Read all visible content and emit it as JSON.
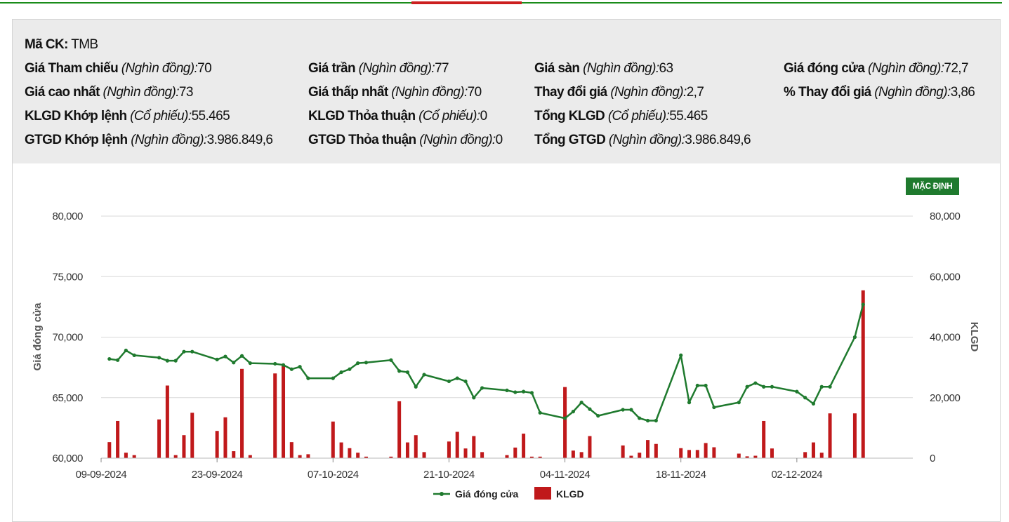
{
  "stock": {
    "code_label": "Mã CK:",
    "code": "TMB",
    "rows": [
      [
        {
          "label": "Giá Tham chiếu",
          "unit": "(Nghìn đồng):",
          "value": "70"
        },
        {
          "label": "Giá trần",
          "unit": "(Nghìn đồng):",
          "value": "77"
        },
        {
          "label": "Giá sàn",
          "unit": "(Nghìn đồng):",
          "value": "63"
        },
        {
          "label": "Giá đóng cửa",
          "unit": "(Nghìn đồng):",
          "value": "72,7"
        }
      ],
      [
        {
          "label": "Giá cao nhất",
          "unit": "(Nghìn đồng):",
          "value": "73"
        },
        {
          "label": "Giá thấp nhất",
          "unit": "(Nghìn đồng):",
          "value": "70"
        },
        {
          "label": "Thay đổi giá",
          "unit": "(Nghìn đồng):",
          "value": "2,7"
        },
        {
          "label": "% Thay đổi giá",
          "unit": "(Nghìn đồng):",
          "value": "3,86"
        }
      ],
      [
        {
          "label": "KLGD Khớp lệnh",
          "unit": "(Cổ phiếu):",
          "value": "55.465"
        },
        {
          "label": "KLGD Thỏa thuận",
          "unit": "(Cổ phiếu):",
          "value": "0"
        },
        {
          "label": "Tổng KLGD",
          "unit": "(Cổ phiếu):",
          "value": "55.465"
        }
      ],
      [
        {
          "label": "GTGD Khớp lệnh",
          "unit": "(Nghìn đồng):",
          "value": "3.986.849,6"
        },
        {
          "label": "GTGD Thỏa thuận",
          "unit": "(Nghìn đồng):",
          "value": "0"
        },
        {
          "label": "Tổng GTGD",
          "unit": "(Nghìn đồng):",
          "value": "3.986.849,6"
        }
      ]
    ]
  },
  "reset_button_label": "MẶC ĐỊNH",
  "colors": {
    "line": "#1f7a2e",
    "bar": "#c0191b",
    "grid": "#d8d8d8",
    "accent_green": "#1a8c1a",
    "accent_red": "#cc1f1f"
  },
  "chart_data": {
    "type": "bar+line",
    "title": "",
    "xlabel": "",
    "ylabel": "Giá đóng cửa",
    "y2label": "KLGD",
    "ylim": [
      60000,
      80000
    ],
    "y2lim": [
      0,
      80000
    ],
    "yticks": [
      "60,000",
      "65,000",
      "70,000",
      "75,000",
      "80,000"
    ],
    "y2ticks": [
      "0",
      "20,000",
      "40,000",
      "60,000",
      "80,000"
    ],
    "xlim": [
      "2024-09-09",
      "2024-12-16"
    ],
    "xticks": [
      "09-09-2024",
      "23-09-2024",
      "07-10-2024",
      "21-10-2024",
      "04-11-2024",
      "18-11-2024",
      "02-12-2024"
    ],
    "legend": {
      "placement": "bottom-center",
      "entries": [
        "Giá đóng cửa",
        "KLGD"
      ]
    },
    "grid": "horizontal",
    "series": [
      {
        "name": "Giá đóng cửa",
        "type": "line",
        "points": [
          [
            "2024-09-10",
            68200
          ],
          [
            "2024-09-11",
            68100
          ],
          [
            "2024-09-12",
            68900
          ],
          [
            "2024-09-13",
            68500
          ],
          [
            "2024-09-16",
            68300
          ],
          [
            "2024-09-17",
            68050
          ],
          [
            "2024-09-18",
            68050
          ],
          [
            "2024-09-19",
            68800
          ],
          [
            "2024-09-20",
            68800
          ],
          [
            "2024-09-23",
            68150
          ],
          [
            "2024-09-24",
            68400
          ],
          [
            "2024-09-25",
            67900
          ],
          [
            "2024-09-26",
            68450
          ],
          [
            "2024-09-27",
            67850
          ],
          [
            "2024-09-30",
            67800
          ],
          [
            "2024-10-01",
            67700
          ],
          [
            "2024-10-02",
            67350
          ],
          [
            "2024-10-03",
            67550
          ],
          [
            "2024-10-04",
            66600
          ],
          [
            "2024-10-07",
            66600
          ],
          [
            "2024-10-08",
            67100
          ],
          [
            "2024-10-09",
            67350
          ],
          [
            "2024-10-10",
            67850
          ],
          [
            "2024-10-11",
            67900
          ],
          [
            "2024-10-14",
            68100
          ],
          [
            "2024-10-15",
            67200
          ],
          [
            "2024-10-16",
            67100
          ],
          [
            "2024-10-17",
            65900
          ],
          [
            "2024-10-18",
            66900
          ],
          [
            "2024-10-21",
            66350
          ],
          [
            "2024-10-22",
            66600
          ],
          [
            "2024-10-23",
            66350
          ],
          [
            "2024-10-24",
            65000
          ],
          [
            "2024-10-25",
            65800
          ],
          [
            "2024-10-28",
            65600
          ],
          [
            "2024-10-29",
            65450
          ],
          [
            "2024-10-30",
            65500
          ],
          [
            "2024-10-31",
            65400
          ],
          [
            "2024-11-01",
            63750
          ],
          [
            "2024-11-04",
            63300
          ],
          [
            "2024-11-05",
            63850
          ],
          [
            "2024-11-06",
            64600
          ],
          [
            "2024-11-07",
            64050
          ],
          [
            "2024-11-08",
            63500
          ],
          [
            "2024-11-11",
            64000
          ],
          [
            "2024-11-12",
            64000
          ],
          [
            "2024-11-13",
            63300
          ],
          [
            "2024-11-14",
            63100
          ],
          [
            "2024-11-15",
            63100
          ],
          [
            "2024-11-18",
            68500
          ],
          [
            "2024-11-19",
            64600
          ],
          [
            "2024-11-20",
            66000
          ],
          [
            "2024-11-21",
            66000
          ],
          [
            "2024-11-22",
            64200
          ],
          [
            "2024-11-25",
            64600
          ],
          [
            "2024-11-26",
            65900
          ],
          [
            "2024-11-27",
            66200
          ],
          [
            "2024-11-28",
            65900
          ],
          [
            "2024-11-29",
            65900
          ],
          [
            "2024-12-02",
            65500
          ],
          [
            "2024-12-03",
            65000
          ],
          [
            "2024-12-04",
            64500
          ],
          [
            "2024-12-05",
            65900
          ],
          [
            "2024-12-06",
            65900
          ],
          [
            "2024-12-09",
            70000
          ],
          [
            "2024-12-10",
            72700
          ]
        ]
      },
      {
        "name": "KLGD",
        "type": "bar",
        "axis": "right",
        "points": [
          [
            "2024-09-10",
            5300
          ],
          [
            "2024-09-11",
            12300
          ],
          [
            "2024-09-12",
            1800
          ],
          [
            "2024-09-13",
            1000
          ],
          [
            "2024-09-16",
            12800
          ],
          [
            "2024-09-17",
            24000
          ],
          [
            "2024-09-18",
            1000
          ],
          [
            "2024-09-19",
            7600
          ],
          [
            "2024-09-20",
            15000
          ],
          [
            "2024-09-23",
            9000
          ],
          [
            "2024-09-24",
            13500
          ],
          [
            "2024-09-25",
            2300
          ],
          [
            "2024-09-26",
            29500
          ],
          [
            "2024-09-27",
            1000
          ],
          [
            "2024-09-30",
            28000
          ],
          [
            "2024-10-01",
            30500
          ],
          [
            "2024-10-02",
            5300
          ],
          [
            "2024-10-03",
            1000
          ],
          [
            "2024-10-04",
            1300
          ],
          [
            "2024-10-07",
            12100
          ],
          [
            "2024-10-08",
            5200
          ],
          [
            "2024-10-09",
            3300
          ],
          [
            "2024-10-10",
            1800
          ],
          [
            "2024-10-11",
            500
          ],
          [
            "2024-10-14",
            500
          ],
          [
            "2024-10-15",
            18800
          ],
          [
            "2024-10-16",
            5200
          ],
          [
            "2024-10-17",
            7600
          ],
          [
            "2024-10-18",
            2000
          ],
          [
            "2024-10-21",
            5500
          ],
          [
            "2024-10-22",
            8700
          ],
          [
            "2024-10-23",
            3200
          ],
          [
            "2024-10-24",
            7300
          ],
          [
            "2024-10-25",
            2000
          ],
          [
            "2024-10-28",
            1000
          ],
          [
            "2024-10-29",
            3500
          ],
          [
            "2024-10-30",
            8100
          ],
          [
            "2024-10-31",
            500
          ],
          [
            "2024-11-01",
            500
          ],
          [
            "2024-11-04",
            23500
          ],
          [
            "2024-11-05",
            2500
          ],
          [
            "2024-11-06",
            2000
          ],
          [
            "2024-11-07",
            7300
          ],
          [
            "2024-11-11",
            4200
          ],
          [
            "2024-11-12",
            800
          ],
          [
            "2024-11-13",
            1800
          ],
          [
            "2024-11-14",
            6000
          ],
          [
            "2024-11-15",
            4700
          ],
          [
            "2024-11-18",
            3300
          ],
          [
            "2024-11-19",
            2700
          ],
          [
            "2024-11-20",
            2700
          ],
          [
            "2024-11-21",
            5000
          ],
          [
            "2024-11-22",
            3600
          ],
          [
            "2024-11-25",
            1500
          ],
          [
            "2024-11-26",
            600
          ],
          [
            "2024-11-27",
            800
          ],
          [
            "2024-11-28",
            12300
          ],
          [
            "2024-11-29",
            3200
          ],
          [
            "2024-12-03",
            2000
          ],
          [
            "2024-12-04",
            5200
          ],
          [
            "2024-12-05",
            1800
          ],
          [
            "2024-12-06",
            14800
          ],
          [
            "2024-12-09",
            14800
          ],
          [
            "2024-12-10",
            55465
          ]
        ]
      }
    ]
  }
}
